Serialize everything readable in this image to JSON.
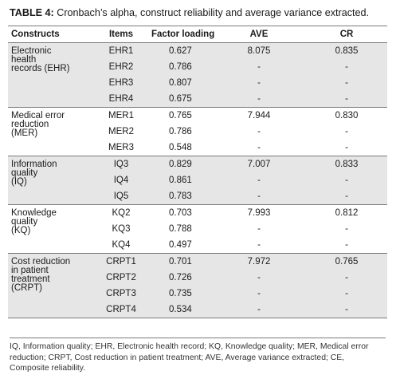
{
  "caption": {
    "label": "TABLE 4:",
    "text": " Cronbach’s alpha, construct reliability and average variance extracted."
  },
  "headers": {
    "constructs": "Constructs",
    "items": "Items",
    "factor_loading": "Factor loading",
    "ave": "AVE",
    "cr": "CR"
  },
  "groups": [
    {
      "construct": [
        "Electronic",
        "health",
        "records (EHR)"
      ],
      "shaded": true,
      "rows": [
        {
          "item": "EHR1",
          "fl": "0.627",
          "ave": "8.075",
          "cr": "0.835"
        },
        {
          "item": "EHR2",
          "fl": "0.786",
          "ave": "-",
          "cr": "-"
        },
        {
          "item": "EHR3",
          "fl": "0.807",
          "ave": "-",
          "cr": "-"
        },
        {
          "item": "EHR4",
          "fl": "0.675",
          "ave": "-",
          "cr": "-"
        }
      ]
    },
    {
      "construct": [
        "Medical error",
        "reduction",
        "(MER)"
      ],
      "shaded": false,
      "rows": [
        {
          "item": "MER1",
          "fl": "0.765",
          "ave": "7.944",
          "cr": "0.830"
        },
        {
          "item": "MER2",
          "fl": "0.786",
          "ave": "-",
          "cr": "-"
        },
        {
          "item": "MER3",
          "fl": "0.548",
          "ave": "-",
          "cr": "-"
        }
      ]
    },
    {
      "construct": [
        "Information",
        "quality",
        "(IQ)"
      ],
      "shaded": true,
      "rows": [
        {
          "item": "IQ3",
          "fl": "0.829",
          "ave": "7.007",
          "cr": "0.833"
        },
        {
          "item": "IQ4",
          "fl": "0.861",
          "ave": "-",
          "cr": "-"
        },
        {
          "item": "IQ5",
          "fl": "0.783",
          "ave": "-",
          "cr": "-"
        }
      ]
    },
    {
      "construct": [
        "Knowledge",
        "quality",
        "(KQ)"
      ],
      "shaded": false,
      "rows": [
        {
          "item": "KQ2",
          "fl": "0.703",
          "ave": "7.993",
          "cr": "0.812"
        },
        {
          "item": "KQ3",
          "fl": "0.788",
          "ave": "-",
          "cr": "-"
        },
        {
          "item": "KQ4",
          "fl": "0.497",
          "ave": "-",
          "cr": "-"
        }
      ]
    },
    {
      "construct": [
        "Cost reduction",
        "in patient",
        "treatment",
        "(CRPT)"
      ],
      "shaded": true,
      "rows": [
        {
          "item": "CRPT1",
          "fl": "0.701",
          "ave": "7.972",
          "cr": "0.765"
        },
        {
          "item": "CRPT2",
          "fl": "0.726",
          "ave": "-",
          "cr": "-"
        },
        {
          "item": "CRPT3",
          "fl": "0.735",
          "ave": "-",
          "cr": "-"
        },
        {
          "item": "CRPT4",
          "fl": "0.534",
          "ave": "-",
          "cr": "-"
        }
      ]
    }
  ],
  "footnote": "IQ, Information quality; EHR, Electronic health record; KQ, Knowledge quality; MER, Medical error reduction; CRPT, Cost reduction in patient treatment; AVE, Average variance extracted; CE, Composite reliability."
}
